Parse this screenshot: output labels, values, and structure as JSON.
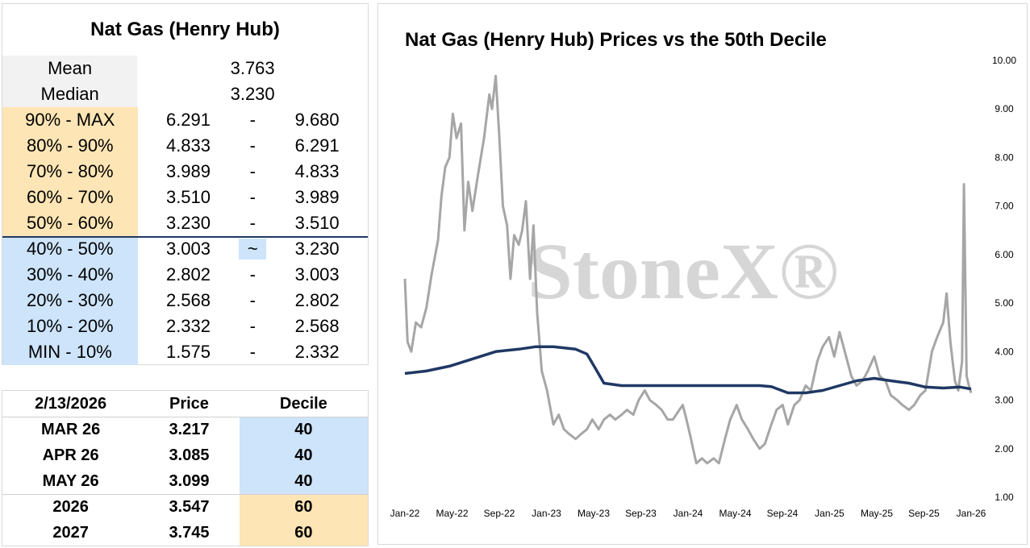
{
  "summary_table": {
    "title": "Nat Gas (Henry Hub)",
    "mean_label": "Mean",
    "mean_value": "3.763",
    "median_label": "Median",
    "median_value": "3.230",
    "deciles": [
      {
        "label": "90% - MAX",
        "low": "6.291",
        "sep": "-",
        "high": "9.680",
        "band": "orange"
      },
      {
        "label": "80% - 90%",
        "low": "4.833",
        "sep": "-",
        "high": "6.291",
        "band": "orange"
      },
      {
        "label": "70% - 80%",
        "low": "3.989",
        "sep": "-",
        "high": "4.833",
        "band": "orange"
      },
      {
        "label": "60% - 70%",
        "low": "3.510",
        "sep": "-",
        "high": "3.989",
        "band": "orange"
      },
      {
        "label": "50% - 60%",
        "low": "3.230",
        "sep": "-",
        "high": "3.510",
        "band": "orange"
      },
      {
        "label": "40% - 50%",
        "low": "3.003",
        "sep": "~",
        "high": "3.230",
        "band": "blue"
      },
      {
        "label": "30% - 40%",
        "low": "2.802",
        "sep": "-",
        "high": "3.003",
        "band": "blue"
      },
      {
        "label": "20% - 30%",
        "low": "2.568",
        "sep": "-",
        "high": "2.802",
        "band": "blue"
      },
      {
        "label": "10% - 20%",
        "low": "2.332",
        "sep": "-",
        "high": "2.568",
        "band": "blue"
      },
      {
        "label": "MIN - 10%",
        "low": "1.575",
        "sep": "-",
        "high": "2.332",
        "band": "blue"
      }
    ],
    "highlight_color_orange": "#fde5b5",
    "highlight_color_blue": "#cde4fb"
  },
  "forward_table": {
    "headers": [
      "2/13/2026",
      "Price",
      "Decile"
    ],
    "rows": [
      {
        "contract": "MAR 26",
        "price": "3.217",
        "decile": "40",
        "band": "blue"
      },
      {
        "contract": "APR 26",
        "price": "3.085",
        "decile": "40",
        "band": "blue"
      },
      {
        "contract": "MAY 26",
        "price": "3.099",
        "decile": "40",
        "band": "blue"
      },
      {
        "contract": "2026",
        "price": "3.547",
        "decile": "60",
        "band": "orange"
      },
      {
        "contract": "2027",
        "price": "3.745",
        "decile": "60",
        "band": "orange"
      }
    ]
  },
  "watermark": "StoneX®",
  "chart_data": {
    "type": "line",
    "title": "Nat Gas (Henry Hub) Prices vs the 50th Decile",
    "x_ticks": [
      "Jan-22",
      "May-22",
      "Sep-22",
      "Jan-23",
      "May-23",
      "Sep-23",
      "Jan-24",
      "May-24",
      "Sep-24",
      "Jan-25",
      "May-25",
      "Sep-25",
      "Jan-26"
    ],
    "y_ticks": [
      "1.00",
      "2.00",
      "3.00",
      "4.00",
      "5.00",
      "6.00",
      "7.00",
      "8.00",
      "9.00",
      "10.00"
    ],
    "ylim": [
      1,
      10
    ],
    "y_axis_position": "right",
    "grid": false,
    "series": [
      {
        "color": "#a6a6a6",
        "x": [
          "2022-01-03",
          "2022-01-10",
          "2022-01-20",
          "2022-02-01",
          "2022-02-15",
          "2022-03-01",
          "2022-03-15",
          "2022-04-01",
          "2022-04-10",
          "2022-04-20",
          "2022-05-01",
          "2022-05-10",
          "2022-05-20",
          "2022-06-01",
          "2022-06-10",
          "2022-06-20",
          "2022-07-01",
          "2022-07-15",
          "2022-08-01",
          "2022-08-15",
          "2022-08-22",
          "2022-09-01",
          "2022-09-10",
          "2022-09-20",
          "2022-10-01",
          "2022-10-10",
          "2022-10-20",
          "2022-11-01",
          "2022-11-10",
          "2022-11-20",
          "2022-12-01",
          "2022-12-10",
          "2022-12-20",
          "2023-01-01",
          "2023-01-15",
          "2023-02-01",
          "2023-02-15",
          "2023-03-01",
          "2023-03-15",
          "2023-04-01",
          "2023-04-15",
          "2023-05-01",
          "2023-05-15",
          "2023-06-01",
          "2023-06-15",
          "2023-07-01",
          "2023-07-15",
          "2023-08-01",
          "2023-08-15",
          "2023-09-01",
          "2023-09-15",
          "2023-10-01",
          "2023-10-15",
          "2023-11-01",
          "2023-11-15",
          "2023-12-01",
          "2023-12-15",
          "2024-01-01",
          "2024-01-10",
          "2024-01-20",
          "2024-02-01",
          "2024-02-15",
          "2024-03-01",
          "2024-03-15",
          "2024-04-01",
          "2024-04-15",
          "2024-05-01",
          "2024-05-15",
          "2024-06-01",
          "2024-06-15",
          "2024-07-01",
          "2024-07-15",
          "2024-08-01",
          "2024-08-15",
          "2024-09-01",
          "2024-09-15",
          "2024-10-01",
          "2024-10-15",
          "2024-11-01",
          "2024-11-15",
          "2024-12-01",
          "2024-12-15",
          "2025-01-01",
          "2025-01-15",
          "2025-02-01",
          "2025-02-15",
          "2025-03-01",
          "2025-03-15",
          "2025-04-01",
          "2025-04-15",
          "2025-05-01",
          "2025-05-15",
          "2025-06-01",
          "2025-06-15",
          "2025-07-01",
          "2025-07-15",
          "2025-08-01",
          "2025-08-15",
          "2025-09-01",
          "2025-09-15",
          "2025-10-01",
          "2025-10-15",
          "2025-11-01",
          "2025-11-15",
          "2025-12-01",
          "2025-12-10",
          "2025-12-20",
          "2026-01-01",
          "2026-01-10",
          "2026-01-20",
          "2026-01-25",
          "2026-02-01",
          "2026-02-07",
          "2026-02-13"
        ],
        "y": [
          5.5,
          4.2,
          4.0,
          4.6,
          4.5,
          4.9,
          5.6,
          6.3,
          7.2,
          7.8,
          8.0,
          8.9,
          8.4,
          8.7,
          6.5,
          7.5,
          6.9,
          7.6,
          8.4,
          9.3,
          9.0,
          9.68,
          8.5,
          7.0,
          6.6,
          5.5,
          6.4,
          6.2,
          6.5,
          7.1,
          5.5,
          6.6,
          4.8,
          3.6,
          3.2,
          2.5,
          2.7,
          2.4,
          2.3,
          2.2,
          2.3,
          2.4,
          2.6,
          2.4,
          2.6,
          2.7,
          2.6,
          2.7,
          2.8,
          2.7,
          3.0,
          3.2,
          3.0,
          2.9,
          2.8,
          2.6,
          2.6,
          2.8,
          2.9,
          2.6,
          2.2,
          1.7,
          1.8,
          1.7,
          1.8,
          1.7,
          2.2,
          2.6,
          2.9,
          2.6,
          2.4,
          2.2,
          2.0,
          2.1,
          2.5,
          2.8,
          2.9,
          2.5,
          2.9,
          3.0,
          3.3,
          3.2,
          3.8,
          4.1,
          4.3,
          3.9,
          4.4,
          4.0,
          3.5,
          3.3,
          3.4,
          3.6,
          3.9,
          3.5,
          3.4,
          3.1,
          3.0,
          2.9,
          2.8,
          2.9,
          3.1,
          3.2,
          4.0,
          4.3,
          4.6,
          5.2,
          4.2,
          3.4,
          3.2,
          3.8,
          7.45,
          3.5,
          3.3,
          3.15
        ]
      },
      {
        "color": "#1f3864",
        "x": [
          "2022-01-03",
          "2022-03-01",
          "2022-05-01",
          "2022-07-01",
          "2022-09-01",
          "2022-11-01",
          "2022-12-15",
          "2023-02-01",
          "2023-04-01",
          "2023-05-01",
          "2023-05-20",
          "2023-06-15",
          "2023-08-01",
          "2023-10-01",
          "2023-12-01",
          "2024-03-01",
          "2024-06-01",
          "2024-08-01",
          "2024-09-01",
          "2024-10-15",
          "2024-12-01",
          "2025-01-15",
          "2025-03-01",
          "2025-04-15",
          "2025-06-01",
          "2025-07-15",
          "2025-09-01",
          "2025-10-15",
          "2025-12-01",
          "2026-01-15",
          "2026-02-13"
        ],
        "y": [
          3.55,
          3.6,
          3.7,
          3.85,
          4.0,
          4.05,
          4.1,
          4.1,
          4.05,
          3.95,
          3.7,
          3.35,
          3.3,
          3.3,
          3.3,
          3.3,
          3.3,
          3.3,
          3.28,
          3.15,
          3.15,
          3.2,
          3.3,
          3.4,
          3.45,
          3.4,
          3.35,
          3.27,
          3.25,
          3.27,
          3.23
        ]
      }
    ]
  }
}
